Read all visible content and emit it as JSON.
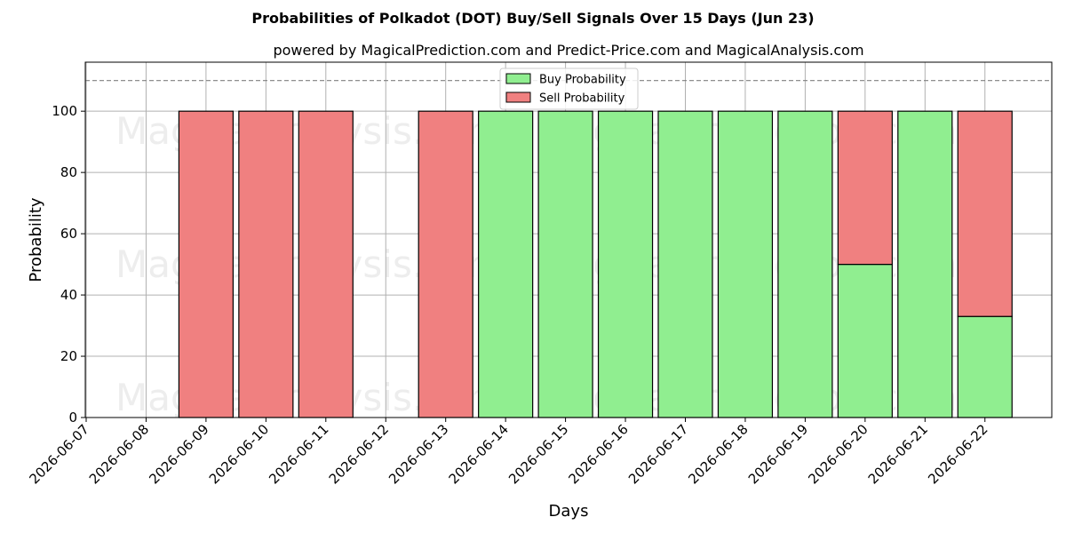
{
  "chart_data": {
    "type": "bar",
    "stacked": true,
    "title": "Probabilities of Polkadot (DOT) Buy/Sell Signals Over 15 Days (Jun 23)",
    "subtitle": "powered by MagicalPrediction.com and Predict-Price.com and MagicalAnalysis.com",
    "xlabel": "Days",
    "ylabel": "Probability",
    "ylim": [
      0,
      116
    ],
    "yticks": [
      0,
      20,
      40,
      60,
      80,
      100
    ],
    "xticks": [
      "2026-06-07",
      "2026-06-08",
      "2026-06-09",
      "2026-06-10",
      "2026-06-11",
      "2026-06-12",
      "2026-06-13",
      "2026-06-14",
      "2026-06-15",
      "2026-06-16",
      "2026-06-17",
      "2026-06-18",
      "2026-06-19",
      "2026-06-20",
      "2026-06-21",
      "2026-06-22"
    ],
    "categories": [
      "2026-06-09",
      "2026-06-10",
      "2026-06-11",
      "2026-06-13",
      "2026-06-14",
      "2026-06-15",
      "2026-06-16",
      "2026-06-17",
      "2026-06-18",
      "2026-06-19",
      "2026-06-20",
      "2026-06-21",
      "2026-06-22"
    ],
    "series": [
      {
        "name": "Buy Probability",
        "color": "#90ee90",
        "values": [
          0,
          0,
          0,
          0,
          100,
          100,
          100,
          100,
          100,
          100,
          50,
          100,
          33
        ]
      },
      {
        "name": "Sell Probability",
        "color": "#f08080",
        "values": [
          100,
          100,
          100,
          100,
          0,
          0,
          0,
          0,
          0,
          0,
          50,
          0,
          67
        ]
      }
    ],
    "reference_line": {
      "y": 110,
      "style": "dashed",
      "color": "#808080"
    },
    "grid": true,
    "legend_position": "top-center",
    "watermarks": [
      "MagicalAnalysis.com",
      "MagicalPrediction.com"
    ]
  }
}
